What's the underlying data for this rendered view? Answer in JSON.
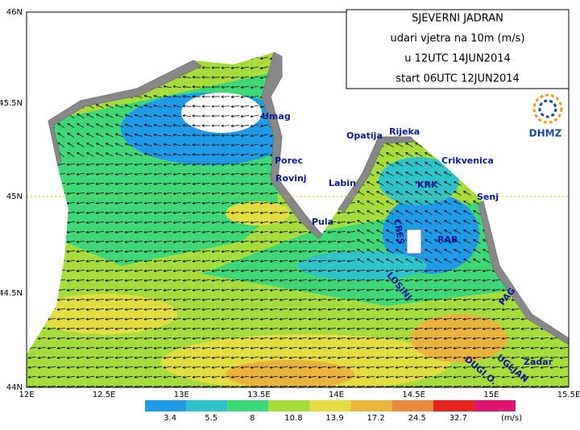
{
  "title_box": {
    "lines": [
      "SJEVERNI JADRAN",
      "udari vjetra na 10m (m/s)",
      "u 12UTC 14JUN2014",
      "start 06UTC 12JUN2014"
    ]
  },
  "logo": "DHMZ",
  "places": [
    "Umag",
    "Porec",
    "Rovinj",
    "Labin",
    "Pula",
    "Opatija",
    "Rijeka",
    "Crikvenica",
    "KRK",
    "Senj",
    "RAB",
    "CRES",
    "LOSINJ",
    "PAG",
    "Zadar",
    "DUGI O.",
    "UGLJAN"
  ],
  "lat_ticks": [
    "46N",
    "45.5N",
    "45N",
    "44.5N",
    "44N"
  ],
  "lon_ticks": [
    "12E",
    "12.5E",
    "13E",
    "13.5E",
    "14E",
    "14.5E",
    "15E",
    "15.5E"
  ],
  "colorbar": {
    "levels": [
      "3.4",
      "5.5",
      "8",
      "10.8",
      "13.9",
      "17.2",
      "24.5",
      "32.7"
    ],
    "unit": "(m/s)",
    "colors": [
      "#1e9be6",
      "#2ec3c8",
      "#3ed878",
      "#a6dc3c",
      "#e2dc40",
      "#e8b43c",
      "#e88a3c",
      "#e6231e",
      "#e0166e"
    ]
  }
}
